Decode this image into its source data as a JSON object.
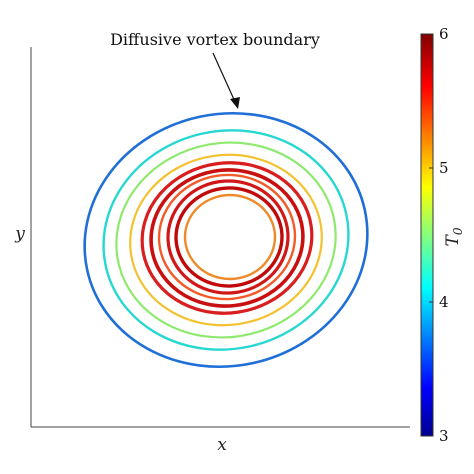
{
  "chart_data": {
    "type": "contour",
    "annotation": "Diffusive vortex boundary",
    "xlabel": "x",
    "ylabel": "y",
    "colorbar": {
      "label": "T_0",
      "range": [
        3,
        6
      ],
      "ticks": [
        3,
        4,
        5,
        6
      ],
      "colormap": "jet"
    },
    "grid": false,
    "series": [
      {
        "level": 3.9,
        "color": "#1f6fd6"
      },
      {
        "level": 4.3,
        "color": "#27d7d1"
      },
      {
        "level": 4.6,
        "color": "#8fe96f"
      },
      {
        "level": 4.9,
        "color": "#f2c230"
      },
      {
        "level": 5.6,
        "color": "#d81e1e"
      },
      {
        "level": 5.8,
        "color": "#c81010"
      },
      {
        "level": 5.4,
        "color": "#f25b2a"
      },
      {
        "level": 5.7,
        "color": "#d01818"
      },
      {
        "level": 5.9,
        "color": "#c00a0a"
      },
      {
        "level": 5.2,
        "color": "#ee8a2a"
      }
    ]
  }
}
